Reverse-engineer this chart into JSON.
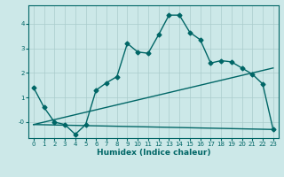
{
  "title": "",
  "xlabel": "Humidex (Indice chaleur)",
  "bg_color": "#cce8e8",
  "line_color": "#006666",
  "grid_color": "#aacccc",
  "xlim": [
    -0.5,
    23.5
  ],
  "ylim": [
    -0.65,
    4.75
  ],
  "xticks": [
    0,
    1,
    2,
    3,
    4,
    5,
    6,
    7,
    8,
    9,
    10,
    11,
    12,
    13,
    14,
    15,
    16,
    17,
    18,
    19,
    20,
    21,
    22,
    23
  ],
  "yticks": [
    0,
    1,
    2,
    3,
    4
  ],
  "ytick_labels": [
    "-0",
    "1",
    "2",
    "3",
    "4"
  ],
  "line1_x": [
    0,
    1,
    2,
    3,
    4,
    5,
    6,
    7,
    8,
    9,
    10,
    11,
    12,
    13,
    14,
    15,
    16,
    17,
    18,
    19,
    20,
    21,
    22,
    23
  ],
  "line1_y": [
    1.4,
    0.6,
    0.0,
    -0.1,
    -0.5,
    -0.1,
    1.3,
    1.6,
    1.85,
    3.2,
    2.85,
    2.8,
    3.55,
    4.35,
    4.35,
    3.65,
    3.35,
    2.4,
    2.5,
    2.45,
    2.2,
    1.95,
    1.55,
    -0.3
  ],
  "line2_x": [
    0,
    23
  ],
  "line2_y": [
    -0.1,
    2.2
  ],
  "line3_x": [
    0,
    23
  ],
  "line3_y": [
    -0.1,
    -0.3
  ],
  "marker": "D",
  "markersize": 2.5,
  "linewidth": 1.0,
  "tick_fontsize": 5.0,
  "xlabel_fontsize": 6.5
}
